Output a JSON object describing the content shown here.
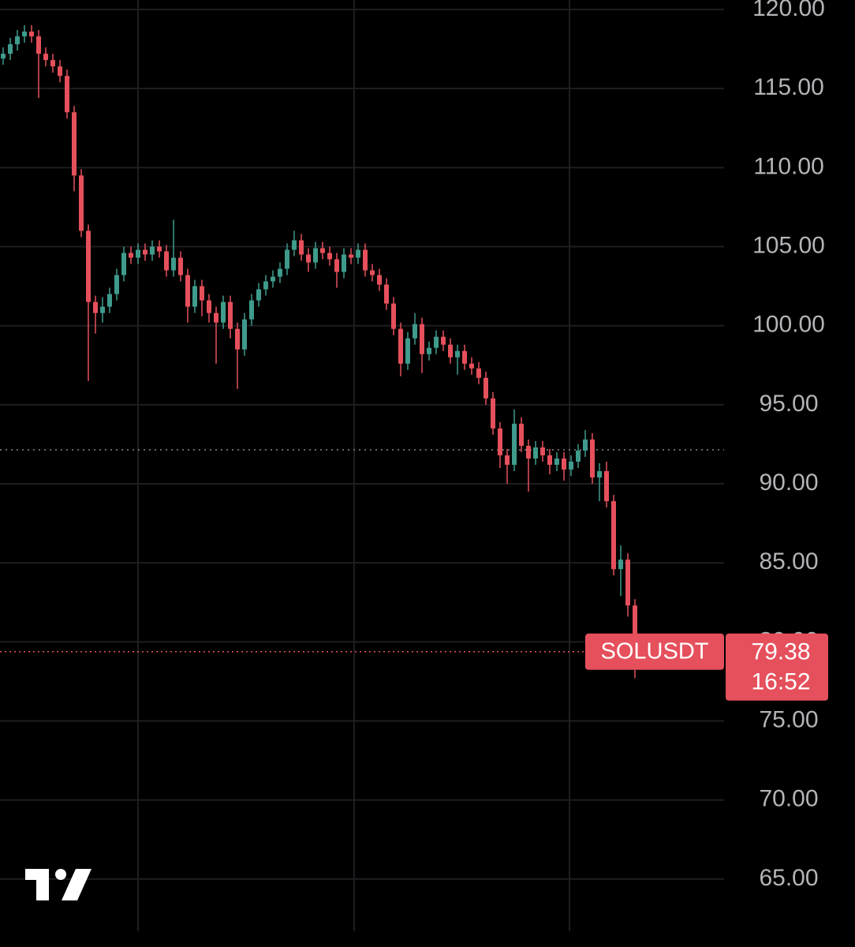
{
  "chart_data": {
    "type": "candlestick",
    "symbol": "SOLUSDT",
    "last_price": 79.38,
    "countdown": "16:52",
    "reference_price": 92.15,
    "up_color": "#3f9b8c",
    "down_color": "#e5505c",
    "grid": true,
    "ylim": [
      60.7,
      120.6
    ],
    "yticks": [
      {
        "value": 65,
        "label": "65.00"
      },
      {
        "value": 70,
        "label": "70.00"
      },
      {
        "value": 75,
        "label": "75.00"
      },
      {
        "value": 80,
        "label": "80.00"
      },
      {
        "value": 85,
        "label": "85.00"
      },
      {
        "value": 90,
        "label": "90.00"
      },
      {
        "value": 95,
        "label": "95.00"
      },
      {
        "value": 100,
        "label": "100.00"
      },
      {
        "value": 105,
        "label": "105.00"
      },
      {
        "value": 110,
        "label": "110.00"
      },
      {
        "value": 115,
        "label": "115.00"
      },
      {
        "value": 120,
        "label": "120.00"
      }
    ],
    "open": [
      116.9,
      117.2,
      117.8,
      118.3,
      118.6,
      118.3,
      117.2,
      116.8,
      116.4,
      115.8,
      113.5,
      109.5,
      106,
      101.5,
      100.8,
      101.2,
      102,
      103.2,
      104.6,
      104.3,
      104.8,
      104.5,
      105,
      104.7,
      103.5,
      104.3,
      103.2,
      101.2,
      102.5,
      101.6,
      100.8,
      100.2,
      101.5,
      99.8,
      98.5,
      100.4,
      101.6,
      102.3,
      102.8,
      103.1,
      103.6,
      104.8,
      105.4,
      104.5,
      104,
      104.9,
      104.6,
      104.2,
      103.4,
      104.5,
      104.3,
      104.8,
      103.5,
      103.2,
      102.6,
      101.4,
      99.8,
      97.6,
      99.2,
      100.1,
      98.2,
      98.6,
      99.3,
      98.8,
      98,
      98.4,
      97.6,
      97.3,
      96.7,
      95.4,
      93.5,
      91.8,
      91.2,
      93.8,
      92.4,
      91.6,
      92.3,
      91.8,
      91.2,
      91.6,
      90.9,
      91.4,
      92.1,
      92.8,
      90.4,
      90.8,
      88.9,
      84.6,
      85.2,
      82.3
    ],
    "high": [
      117.6,
      118.2,
      118.7,
      119.0,
      119.0,
      118.7,
      117.6,
      117.2,
      116.8,
      116.2,
      113.9,
      109.9,
      106.4,
      101.9,
      101.8,
      102.4,
      103.6,
      105.0,
      105.0,
      105.2,
      105.2,
      105.4,
      105.4,
      105.1,
      106.7,
      104.7,
      103.6,
      102.9,
      102.9,
      102.0,
      101.2,
      101.9,
      101.9,
      100.2,
      100.8,
      102.0,
      102.7,
      103.2,
      103.5,
      104.0,
      105.2,
      106.0,
      105.8,
      104.9,
      105.3,
      105.3,
      105.0,
      104.6,
      104.9,
      104.9,
      105.2,
      105.2,
      103.9,
      103.6,
      103.0,
      101.8,
      100.2,
      99.6,
      100.8,
      100.5,
      99.0,
      99.7,
      99.7,
      99.2,
      98.8,
      98.8,
      98.0,
      97.7,
      97.1,
      95.8,
      93.9,
      92.2,
      94.7,
      94.2,
      92.8,
      92.7,
      92.7,
      92.2,
      92.0,
      92.0,
      91.8,
      92.5,
      93.4,
      93.2,
      91.3,
      91.4,
      89.3,
      86.1,
      85.6,
      82.7
    ],
    "low": [
      116.5,
      116.8,
      117.4,
      117.9,
      117.9,
      114.4,
      116.4,
      116.0,
      115.4,
      113.1,
      108.5,
      105.6,
      96.5,
      99.5,
      100.2,
      100.8,
      101.6,
      102.8,
      103.9,
      103.9,
      104.1,
      104.1,
      104.3,
      103.1,
      103.1,
      102.8,
      100.2,
      100.8,
      100.6,
      100.2,
      97.6,
      99.8,
      99.2,
      96.0,
      98.1,
      100.0,
      101.2,
      101.9,
      102.4,
      102.7,
      103.2,
      104.4,
      104.1,
      103.4,
      103.6,
      104.2,
      103.8,
      102.4,
      103.0,
      103.9,
      103.9,
      103.1,
      102.8,
      102.2,
      101.0,
      99.4,
      96.8,
      97.2,
      98.8,
      97.0,
      97.8,
      98.2,
      98.4,
      97.6,
      96.9,
      97.2,
      96.9,
      96.3,
      95.0,
      93.1,
      91.0,
      90.0,
      90.8,
      92.0,
      89.5,
      91.2,
      91.4,
      90.6,
      90.8,
      90.2,
      90.5,
      91.0,
      91.7,
      90.0,
      88.9,
      88.5,
      84.2,
      82.9,
      81.6,
      77.7
    ],
    "close": [
      117.2,
      117.8,
      118.3,
      118.6,
      118.3,
      117.2,
      116.8,
      116.4,
      115.8,
      113.5,
      109.5,
      106,
      101.5,
      100.8,
      101.2,
      102,
      103.2,
      104.6,
      104.3,
      104.8,
      104.5,
      105,
      104.7,
      103.5,
      104.3,
      103.2,
      101.2,
      102.5,
      101.6,
      100.8,
      100.2,
      101.5,
      99.8,
      98.5,
      100.4,
      101.6,
      102.3,
      102.8,
      103.1,
      103.6,
      104.8,
      105.4,
      104.5,
      104,
      104.9,
      104.6,
      104.2,
      103.4,
      104.5,
      104.3,
      104.8,
      103.5,
      103.2,
      102.6,
      101.4,
      99.8,
      97.6,
      99.2,
      100.1,
      98.2,
      98.6,
      99.3,
      98.8,
      98,
      98.4,
      97.6,
      97.3,
      96.7,
      95.4,
      93.5,
      91.8,
      91.2,
      93.8,
      92.4,
      91.6,
      92.3,
      91.8,
      91.2,
      91.6,
      90.9,
      91.4,
      92.1,
      92.8,
      90.4,
      90.8,
      88.9,
      84.6,
      85.2,
      82.3,
      79.38
    ]
  }
}
